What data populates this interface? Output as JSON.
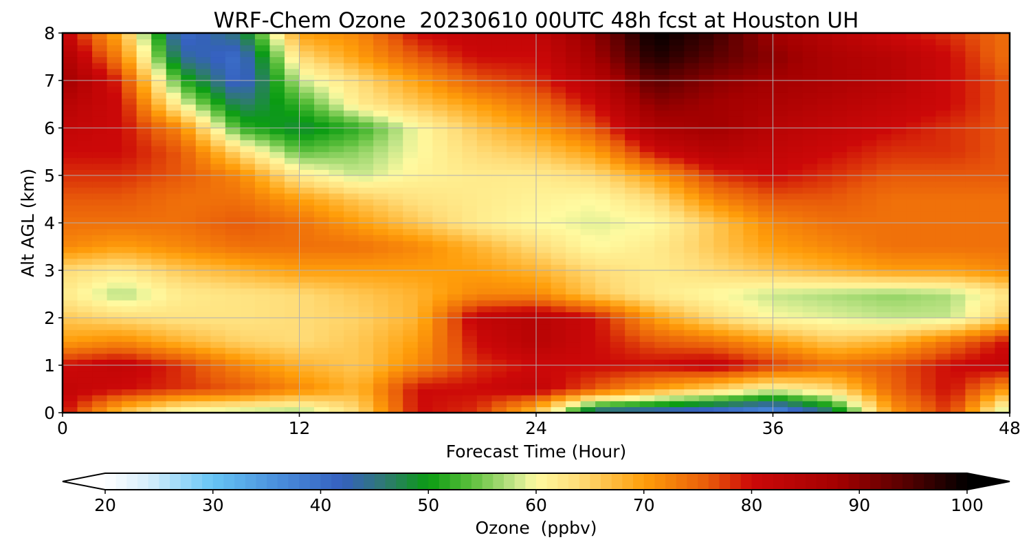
{
  "chart_data": {
    "type": "heatmap",
    "title": "WRF-Chem Ozone  20230610 00UTC 48h fcst at Houston UH",
    "xlabel": "Forecast Time (Hour)",
    "ylabel": "Alt AGL (km)",
    "xlim": [
      0,
      48
    ],
    "ylim": [
      0,
      8
    ],
    "xticks": [
      0,
      12,
      24,
      36,
      48
    ],
    "yticks": [
      0,
      1,
      2,
      3,
      4,
      5,
      6,
      7,
      8
    ],
    "grid": true,
    "colorbar": {
      "label": "Ozone  (ppbv)",
      "orientation": "horizontal",
      "position": "bottom",
      "min": 20,
      "max": 100,
      "ticks": [
        20,
        30,
        40,
        50,
        60,
        70,
        80,
        90,
        100
      ],
      "extend": "both",
      "color_stops": [
        {
          "value": 20,
          "color": "#ffffff"
        },
        {
          "value": 24,
          "color": "#d6eefc"
        },
        {
          "value": 30,
          "color": "#66c4f5"
        },
        {
          "value": 36,
          "color": "#4a8fdc"
        },
        {
          "value": 42,
          "color": "#3560bf"
        },
        {
          "value": 46,
          "color": "#2f7a70"
        },
        {
          "value": 50,
          "color": "#0a9c12"
        },
        {
          "value": 54,
          "color": "#5cbf3c"
        },
        {
          "value": 58,
          "color": "#c4e68a"
        },
        {
          "value": 60,
          "color": "#fffaa0"
        },
        {
          "value": 64,
          "color": "#ffdc78"
        },
        {
          "value": 70,
          "color": "#ff9e0a"
        },
        {
          "value": 76,
          "color": "#e85a0a"
        },
        {
          "value": 80,
          "color": "#cc0808"
        },
        {
          "value": 88,
          "color": "#a30000"
        },
        {
          "value": 94,
          "color": "#5a0000"
        },
        {
          "value": 100,
          "color": "#000000"
        }
      ]
    },
    "x": [
      0,
      3,
      6,
      9,
      12,
      15,
      18,
      21,
      24,
      27,
      30,
      33,
      36,
      39,
      42,
      45,
      48
    ],
    "y": [
      0,
      0.5,
      1,
      1.5,
      2,
      2.5,
      3,
      3.5,
      4,
      4.5,
      5,
      5.5,
      6,
      6.5,
      7,
      7.5,
      8
    ],
    "z": [
      [
        80,
        66,
        58,
        57,
        56,
        64,
        80,
        78,
        66,
        42,
        40,
        38,
        34,
        45,
        70,
        78,
        55
      ],
      [
        82,
        80,
        78,
        76,
        72,
        68,
        80,
        80,
        82,
        76,
        70,
        65,
        60,
        64,
        75,
        80,
        70
      ],
      [
        80,
        82,
        78,
        72,
        68,
        66,
        72,
        78,
        80,
        80,
        80,
        82,
        78,
        74,
        76,
        80,
        82
      ],
      [
        70,
        72,
        68,
        65,
        64,
        66,
        70,
        80,
        84,
        80,
        76,
        74,
        70,
        66,
        68,
        74,
        80
      ],
      [
        66,
        64,
        63,
        63,
        64,
        65,
        68,
        82,
        84,
        80,
        70,
        64,
        60,
        59,
        58,
        58,
        66
      ],
      [
        62,
        57,
        62,
        63,
        64,
        66,
        68,
        72,
        72,
        66,
        62,
        60,
        58,
        57,
        56,
        57,
        63
      ],
      [
        64,
        62,
        66,
        68,
        70,
        70,
        70,
        70,
        68,
        64,
        62,
        64,
        66,
        68,
        70,
        70,
        72
      ],
      [
        72,
        70,
        72,
        74,
        74,
        74,
        72,
        68,
        64,
        60,
        62,
        66,
        70,
        72,
        74,
        74,
        74
      ],
      [
        74,
        74,
        74,
        76,
        74,
        70,
        66,
        62,
        60,
        59,
        60,
        66,
        72,
        74,
        74,
        74,
        74
      ],
      [
        76,
        76,
        74,
        74,
        70,
        66,
        63,
        62,
        61,
        60,
        64,
        72,
        76,
        76,
        74,
        74,
        74
      ],
      [
        78,
        78,
        76,
        72,
        62,
        58,
        61,
        62,
        62,
        64,
        70,
        78,
        80,
        78,
        76,
        76,
        76
      ],
      [
        80,
        80,
        76,
        64,
        54,
        56,
        60,
        64,
        66,
        70,
        80,
        84,
        82,
        80,
        78,
        78,
        76
      ],
      [
        82,
        80,
        72,
        52,
        48,
        52,
        60,
        66,
        70,
        76,
        86,
        88,
        84,
        82,
        80,
        78,
        76
      ],
      [
        84,
        80,
        60,
        46,
        52,
        62,
        66,
        70,
        74,
        80,
        90,
        88,
        86,
        84,
        82,
        80,
        76
      ],
      [
        88,
        78,
        52,
        40,
        58,
        64,
        70,
        76,
        78,
        84,
        94,
        90,
        88,
        86,
        84,
        80,
        76
      ],
      [
        86,
        72,
        44,
        40,
        64,
        70,
        76,
        80,
        80,
        88,
        98,
        94,
        90,
        86,
        84,
        80,
        74
      ],
      [
        82,
        68,
        40,
        46,
        70,
        72,
        80,
        82,
        82,
        90,
        100,
        96,
        88,
        84,
        80,
        78,
        74
      ]
    ]
  }
}
